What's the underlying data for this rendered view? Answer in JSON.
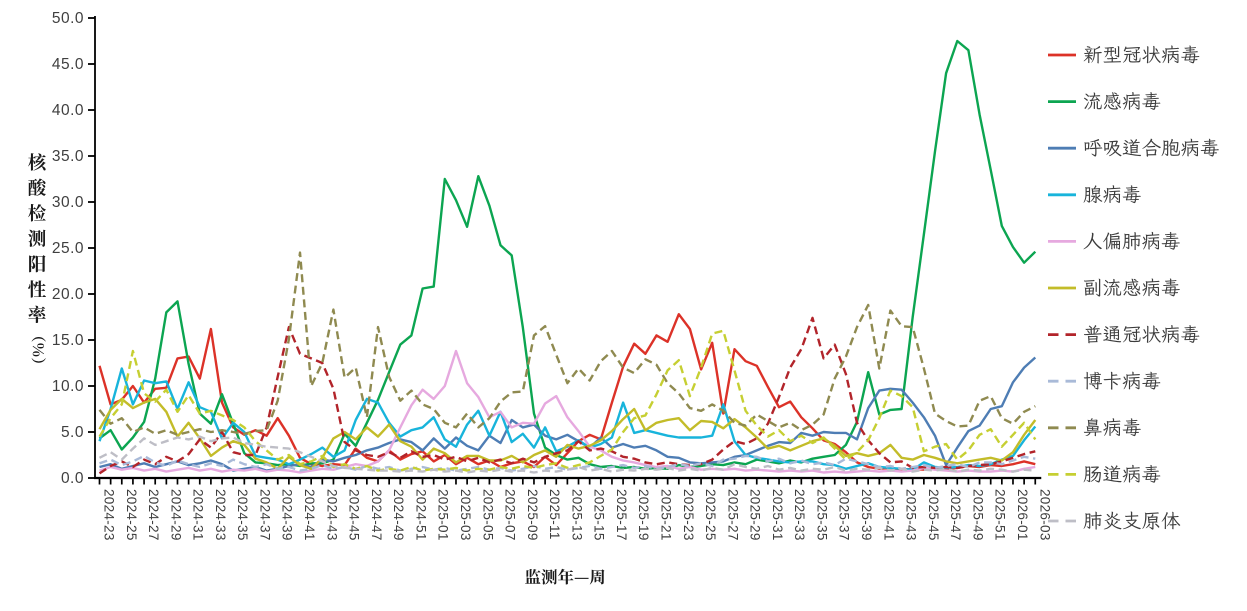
{
  "chart_data": {
    "type": "line",
    "title": "",
    "xlabel": "监测年—周",
    "ylabel": "核酸检测阳性率（％）",
    "ylim": [
      0,
      50
    ],
    "y_tick_step": 5,
    "y_tick_labels": [
      "0.0",
      "5.0",
      "10.0",
      "15.0",
      "20.0",
      "25.0",
      "30.0",
      "35.0",
      "40.0",
      "45.0",
      "50.0"
    ],
    "x_categories": [
      "2024-23",
      "2024-24",
      "2024-25",
      "2024-26",
      "2024-27",
      "2024-28",
      "2024-29",
      "2024-30",
      "2024-31",
      "2024-32",
      "2024-33",
      "2024-34",
      "2024-35",
      "2024-36",
      "2024-37",
      "2024-38",
      "2024-39",
      "2024-40",
      "2024-41",
      "2024-42",
      "2024-43",
      "2024-44",
      "2024-45",
      "2024-46",
      "2024-47",
      "2024-48",
      "2024-49",
      "2024-50",
      "2024-51",
      "2024-52",
      "2025-01",
      "2025-02",
      "2025-03",
      "2025-04",
      "2025-05",
      "2025-06",
      "2025-07",
      "2025-08",
      "2025-09",
      "2025-10",
      "2025-11",
      "2025-12",
      "2025-13",
      "2025-14",
      "2025-15",
      "2025-16",
      "2025-17",
      "2025-18",
      "2025-19",
      "2025-20",
      "2025-21",
      "2025-22",
      "2025-23",
      "2025-24",
      "2025-25",
      "2025-26",
      "2025-27",
      "2025-28",
      "2025-29",
      "2025-30",
      "2025-31",
      "2025-32",
      "2025-33",
      "2025-34",
      "2025-35",
      "2025-36",
      "2025-37",
      "2025-38",
      "2025-39",
      "2025-40",
      "2025-41",
      "2025-42",
      "2025-43",
      "2025-44",
      "2025-45",
      "2025-46",
      "2025-47",
      "2025-48",
      "2025-49",
      "2025-50",
      "2025-51",
      "2025-52",
      "2026-01",
      "2026-02",
      "2026-03"
    ],
    "x_label_interval": 2,
    "grid": false,
    "legend_position": "right",
    "series": [
      {
        "id": "covid",
        "name": "新型冠状病毒",
        "color": "#DC3228",
        "line_style": "solid",
        "values": [
          12.2,
          8.0,
          8.5,
          10.0,
          8.2,
          9.7,
          9.8,
          13.0,
          13.2,
          10.8,
          16.2,
          8.2,
          5.5,
          4.7,
          5.2,
          4.6,
          6.5,
          4.6,
          2.2,
          1.5,
          1.3,
          1.5,
          1.4,
          3.2,
          2.2,
          1.8,
          3.0,
          2.0,
          2.6,
          2.9,
          1.8,
          2.5,
          1.5,
          2.2,
          1.5,
          1.9,
          1.2,
          1.6,
          1.8,
          1.2,
          2.3,
          1.4,
          2.7,
          4.0,
          4.7,
          4.2,
          8.2,
          12.1,
          14.6,
          13.5,
          15.5,
          14.8,
          17.8,
          16.2,
          11.8,
          14.7,
          7.0,
          14.0,
          12.7,
          12.2,
          9.9,
          7.7,
          8.3,
          6.6,
          5.4,
          4.1,
          3.7,
          2.8,
          1.7,
          1.2,
          1.0,
          1.1,
          0.9,
          1.0,
          0.9,
          1.1,
          1.0,
          1.1,
          1.3,
          1.2,
          1.4,
          1.3,
          1.5,
          1.8,
          1.5
        ]
      },
      {
        "id": "flu",
        "name": "流感病毒",
        "color": "#0CA551",
        "line_style": "solid",
        "values": [
          4.3,
          5.2,
          3.1,
          4.4,
          6.1,
          10.8,
          18.0,
          19.2,
          12.4,
          7.0,
          5.9,
          9.1,
          5.9,
          2.7,
          1.7,
          1.6,
          1.4,
          1.5,
          1.3,
          1.6,
          1.6,
          2.0,
          4.8,
          3.5,
          6.0,
          8.5,
          11.5,
          14.5,
          15.5,
          20.6,
          20.8,
          32.5,
          30.2,
          27.3,
          32.8,
          29.6,
          25.3,
          24.2,
          16.4,
          7.0,
          3.3,
          2.5,
          2.0,
          2.2,
          1.5,
          1.2,
          1.3,
          1.1,
          1.2,
          1.0,
          1.1,
          1.0,
          1.4,
          1.2,
          1.3,
          1.5,
          1.4,
          1.7,
          1.5,
          2.0,
          1.8,
          1.6,
          1.9,
          1.7,
          2.1,
          2.3,
          2.5,
          3.6,
          6.1,
          11.5,
          6.9,
          7.4,
          7.5,
          17.5,
          26.5,
          35.5,
          44.0,
          47.5,
          46.5,
          39.5,
          33.5,
          27.4,
          25.1,
          23.4,
          24.6
        ]
      },
      {
        "id": "rsv",
        "name": "呼吸道合胞病毒",
        "color": "#4E7DB4",
        "line_style": "solid",
        "values": [
          1.2,
          1.5,
          1.0,
          1.3,
          1.6,
          1.2,
          1.5,
          1.8,
          1.4,
          1.6,
          1.9,
          1.5,
          0.8,
          1.0,
          1.2,
          0.8,
          1.0,
          1.3,
          1.5,
          1.2,
          2.0,
          1.8,
          2.2,
          2.5,
          3.0,
          3.3,
          3.8,
          4.2,
          3.9,
          3.0,
          4.3,
          3.2,
          4.4,
          3.5,
          3.0,
          4.6,
          3.8,
          6.3,
          5.5,
          5.8,
          4.6,
          4.2,
          4.7,
          4.0,
          3.3,
          4.4,
          3.3,
          3.7,
          3.3,
          3.5,
          3.0,
          2.3,
          2.2,
          1.7,
          1.6,
          1.7,
          1.8,
          2.3,
          2.5,
          3.0,
          3.5,
          3.9,
          3.8,
          4.9,
          4.6,
          5.0,
          4.9,
          4.9,
          4.2,
          7.6,
          9.5,
          9.7,
          9.6,
          8.2,
          6.6,
          4.6,
          1.4,
          3.3,
          5.1,
          5.7,
          7.5,
          7.8,
          10.4,
          12.0,
          13.1
        ]
      },
      {
        "id": "adeno",
        "name": "腺病毒",
        "color": "#18B4DB",
        "line_style": "solid",
        "values": [
          4.0,
          7.5,
          11.9,
          8.0,
          10.6,
          10.3,
          10.5,
          7.5,
          10.4,
          7.7,
          7.2,
          4.3,
          6.0,
          5.0,
          2.4,
          2.2,
          2.0,
          1.5,
          2.0,
          2.6,
          3.3,
          2.3,
          3.0,
          6.3,
          8.6,
          8.2,
          6.0,
          4.5,
          5.2,
          5.5,
          6.6,
          4.2,
          3.4,
          5.8,
          7.3,
          4.6,
          7.2,
          3.9,
          4.8,
          3.3,
          5.5,
          2.9,
          3.4,
          4.1,
          3.3,
          3.7,
          4.4,
          8.2,
          4.9,
          5.2,
          4.9,
          4.6,
          4.4,
          4.4,
          4.4,
          4.6,
          8.0,
          4.0,
          2.5,
          2.2,
          2.0,
          1.8,
          1.7,
          1.8,
          1.8,
          1.5,
          1.4,
          1.0,
          1.3,
          1.6,
          1.2,
          1.1,
          1.0,
          0.9,
          1.7,
          1.2,
          1.1,
          1.2,
          1.4,
          1.3,
          1.5,
          2.0,
          2.4,
          4.1,
          5.6
        ]
      },
      {
        "id": "hmpv",
        "name": "人偏肺病毒",
        "color": "#E6A9DF",
        "line_style": "solid",
        "values": [
          0.8,
          1.2,
          0.9,
          1.1,
          0.8,
          1.0,
          0.7,
          0.9,
          1.1,
          0.8,
          1.0,
          0.7,
          0.9,
          0.8,
          1.0,
          0.7,
          0.9,
          0.8,
          0.6,
          0.8,
          1.0,
          0.9,
          1.2,
          1.5,
          1.3,
          1.8,
          3.0,
          5.5,
          7.9,
          9.6,
          8.6,
          10.0,
          13.8,
          10.3,
          8.8,
          6.6,
          7.2,
          5.5,
          6.0,
          5.9,
          8.1,
          8.9,
          6.6,
          5.1,
          3.4,
          3.0,
          2.3,
          1.9,
          1.7,
          1.4,
          1.2,
          1.3,
          1.0,
          1.2,
          0.9,
          1.0,
          0.9,
          1.0,
          0.8,
          0.9,
          0.8,
          0.7,
          0.8,
          0.7,
          0.8,
          0.6,
          0.7,
          0.6,
          0.7,
          0.8,
          0.7,
          0.8,
          0.7,
          0.8,
          1.1,
          0.9,
          0.8,
          0.7,
          0.8,
          0.7,
          0.7,
          0.8,
          0.7,
          1.0,
          1.2
        ]
      },
      {
        "id": "paraflu",
        "name": "副流感病毒",
        "color": "#C3BC29",
        "line_style": "solid",
        "values": [
          5.3,
          7.4,
          8.6,
          7.6,
          8.2,
          8.6,
          7.2,
          4.5,
          6.0,
          4.3,
          2.4,
          3.3,
          4.0,
          3.6,
          2.1,
          1.7,
          1.0,
          2.3,
          1.4,
          1.0,
          2.2,
          4.3,
          5.0,
          4.2,
          5.5,
          4.5,
          5.8,
          4.0,
          3.4,
          2.0,
          3.2,
          2.7,
          1.7,
          2.4,
          2.4,
          1.9,
          1.9,
          2.4,
          1.7,
          2.5,
          3.0,
          2.3,
          3.6,
          3.2,
          3.5,
          4.1,
          5.1,
          6.4,
          7.5,
          5.2,
          6.0,
          6.3,
          6.5,
          5.2,
          6.2,
          6.1,
          5.4,
          6.4,
          5.5,
          4.4,
          3.2,
          3.5,
          3.0,
          3.5,
          4.0,
          4.3,
          3.5,
          2.4,
          2.7,
          2.4,
          2.7,
          3.6,
          2.2,
          2.0,
          2.5,
          2.2,
          1.8,
          1.6,
          1.8,
          2.0,
          2.2,
          1.9,
          2.8,
          4.7,
          6.3
        ]
      },
      {
        "id": "commoncov",
        "name": "普通冠状病毒",
        "color": "#B2242A",
        "line_style": "dashed",
        "values": [
          0.5,
          1.3,
          1.8,
          1.2,
          2.0,
          1.5,
          2.3,
          1.8,
          2.6,
          4.2,
          3.3,
          5.0,
          2.8,
          2.5,
          2.5,
          5.5,
          11.0,
          16.4,
          13.5,
          13.0,
          12.5,
          9.7,
          3.9,
          3.0,
          2.5,
          2.3,
          2.8,
          2.2,
          2.9,
          2.3,
          2.5,
          2.0,
          2.3,
          1.8,
          2.2,
          1.7,
          2.0,
          1.6,
          2.1,
          1.7,
          2.3,
          2.7,
          3.0,
          4.0,
          3.0,
          3.2,
          2.9,
          2.3,
          2.1,
          1.7,
          1.5,
          1.7,
          1.5,
          1.4,
          1.5,
          2.0,
          3.1,
          4.0,
          3.7,
          4.3,
          5.9,
          8.8,
          12.0,
          14.0,
          17.4,
          13.0,
          14.5,
          11.3,
          6.0,
          4.1,
          2.7,
          1.7,
          1.8,
          1.1,
          1.2,
          1.1,
          1.2,
          1.1,
          1.3,
          1.4,
          1.5,
          1.8,
          2.2,
          2.6,
          2.9
        ]
      },
      {
        "id": "boca",
        "name": "博卡病毒",
        "color": "#A9BAD8",
        "line_style": "dashed",
        "values": [
          1.6,
          2.0,
          1.4,
          1.8,
          2.4,
          1.7,
          1.3,
          1.9,
          1.5,
          1.2,
          1.6,
          1.3,
          2.0,
          1.5,
          1.2,
          1.5,
          1.0,
          1.2,
          0.8,
          1.0,
          1.4,
          1.0,
          1.2,
          0.9,
          1.3,
          1.0,
          1.2,
          0.8,
          1.0,
          1.2,
          0.9,
          1.1,
          0.8,
          1.0,
          1.2,
          0.9,
          1.1,
          0.8,
          1.0,
          1.3,
          1.0,
          1.2,
          0.9,
          1.1,
          1.3,
          1.0,
          1.2,
          1.4,
          1.1,
          1.3,
          1.0,
          1.2,
          1.5,
          1.3,
          1.6,
          1.3,
          2.0,
          2.1,
          2.4,
          2.3,
          1.8,
          2.1,
          1.6,
          1.9,
          1.5,
          1.7,
          1.4,
          2.1,
          1.8,
          1.5,
          1.2,
          1.3,
          1.0,
          1.2,
          1.4,
          1.1,
          1.3,
          1.5,
          1.2,
          1.7,
          1.7,
          1.5,
          1.9,
          2.3,
          2.1
        ]
      },
      {
        "id": "rhino",
        "name": "鼻病毒",
        "color": "#8F8A50",
        "line_style": "dashed",
        "values": [
          7.4,
          5.9,
          6.5,
          5.0,
          5.5,
          4.8,
          5.2,
          4.7,
          5.0,
          5.3,
          5.0,
          5.2,
          5.0,
          4.8,
          5.1,
          5.2,
          8.4,
          15.1,
          24.5,
          10.0,
          12.5,
          18.3,
          10.9,
          12.0,
          6.6,
          16.4,
          11.0,
          8.4,
          9.5,
          8.0,
          7.5,
          6.0,
          5.5,
          7.0,
          5.5,
          6.5,
          8.3,
          9.3,
          9.4,
          15.5,
          16.5,
          13.4,
          10.3,
          11.9,
          10.6,
          12.7,
          13.8,
          12.0,
          11.4,
          12.9,
          12.3,
          10.3,
          9.2,
          7.6,
          7.3,
          8.0,
          7.3,
          6.0,
          5.7,
          6.9,
          6.2,
          5.5,
          6.0,
          5.2,
          5.8,
          6.9,
          10.8,
          13.2,
          16.4,
          18.8,
          11.9,
          18.2,
          16.5,
          16.4,
          11.9,
          7.0,
          6.2,
          5.6,
          5.7,
          8.4,
          8.9,
          6.5,
          5.9,
          7.2,
          7.8
        ]
      },
      {
        "id": "entero",
        "name": "肠道病毒",
        "color": "#C6CF32",
        "line_style": "dashed",
        "values": [
          4.5,
          6.5,
          8.0,
          13.8,
          9.2,
          8.3,
          9.6,
          7.2,
          9.0,
          7.0,
          7.3,
          6.8,
          6.3,
          5.5,
          4.0,
          3.0,
          2.0,
          2.5,
          1.5,
          1.8,
          2.4,
          1.2,
          1.5,
          1.0,
          1.3,
          0.8,
          1.0,
          0.8,
          1.2,
          0.8,
          1.0,
          0.9,
          1.1,
          0.8,
          1.0,
          0.9,
          1.2,
          1.0,
          1.3,
          1.1,
          1.4,
          1.6,
          1.1,
          1.4,
          1.7,
          2.4,
          3.1,
          5.0,
          6.5,
          6.8,
          9.1,
          11.7,
          12.8,
          8.9,
          12.0,
          15.7,
          16.0,
          11.7,
          7.3,
          5.7,
          4.5,
          5.2,
          4.0,
          4.6,
          3.8,
          4.4,
          3.2,
          2.0,
          2.8,
          4.1,
          6.5,
          9.5,
          8.9,
          7.7,
          2.9,
          3.4,
          3.7,
          2.0,
          3.0,
          4.7,
          5.3,
          3.4,
          4.7,
          6.0,
          4.2
        ]
      },
      {
        "id": "myco",
        "name": "肺炎支原体",
        "color": "#BEBEC6",
        "line_style": "dashed",
        "values": [
          2.2,
          2.8,
          2.0,
          3.2,
          4.3,
          3.6,
          4.0,
          4.4,
          4.2,
          4.5,
          4.0,
          4.3,
          4.4,
          3.8,
          3.6,
          3.4,
          3.3,
          3.2,
          2.8,
          2.3,
          1.8,
          1.3,
          1.1,
          1.0,
          0.9,
          0.8,
          0.8,
          0.7,
          0.8,
          0.7,
          0.9,
          0.7,
          0.8,
          0.6,
          0.8,
          0.7,
          0.9,
          0.7,
          0.8,
          0.6,
          0.8,
          0.7,
          0.9,
          1.2,
          0.8,
          1.0,
          0.7,
          0.9,
          0.8,
          1.0,
          0.9,
          1.1,
          0.8,
          1.0,
          0.8,
          1.1,
          0.9,
          1.5,
          1.2,
          1.0,
          1.3,
          0.9,
          1.1,
          0.8,
          1.0,
          0.9,
          1.2,
          0.8,
          1.0,
          0.9,
          1.1,
          0.8,
          1.0,
          0.7,
          0.9,
          0.8,
          1.0,
          0.7,
          0.9,
          0.8,
          1.0,
          0.9,
          0.7,
          0.9,
          0.8
        ]
      }
    ]
  },
  "colors": {
    "background": "#FFFFFF",
    "axis": "#000000",
    "tick_label": "#3F3F3F",
    "axis_title": "#1A1A1A",
    "legend_text": "#3C3C3C"
  }
}
